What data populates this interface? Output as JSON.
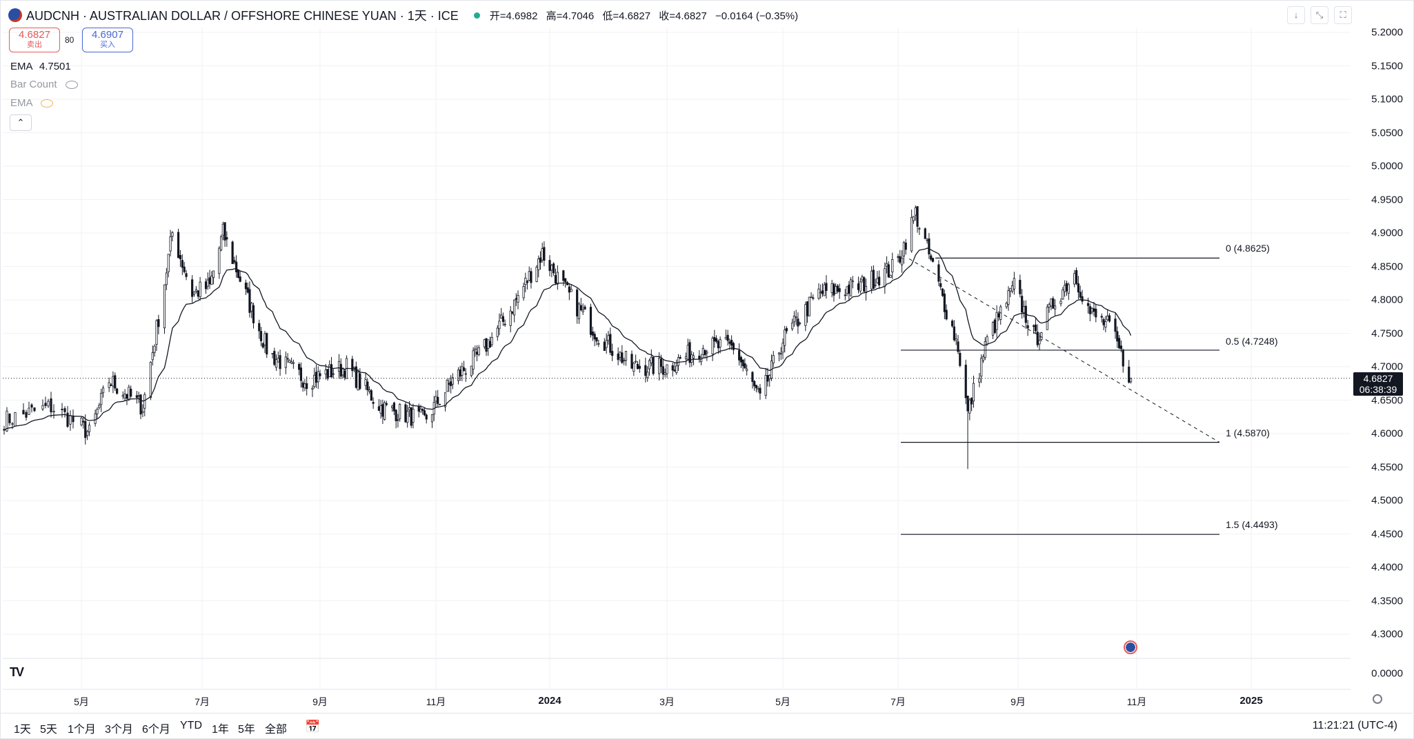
{
  "header": {
    "symbol": "AUDCNH · AUSTRALIAN DOLLAR / OFFSHORE CHINESE YUAN · 1天 · ICE",
    "open": "开=4.6982",
    "high": "高=4.7046",
    "low": "低=4.6827",
    "close": "收=4.6827",
    "change": "−0.0164 (−0.35%)"
  },
  "trade": {
    "sell_price": "4.6827",
    "sell_label": "卖出",
    "spread": "80",
    "buy_price": "4.6907",
    "buy_label": "买入"
  },
  "indicators": {
    "ema_label": "EMA",
    "ema_value": "4.7501",
    "bar_count_label": "Bar Count",
    "ema2_label": "EMA"
  },
  "price_tag": {
    "price": "4.6827",
    "countdown": "06:38:39"
  },
  "y_axis": {
    "ticks": [
      "5.2000",
      "5.1500",
      "5.1000",
      "5.0500",
      "5.0000",
      "4.9500",
      "4.9000",
      "4.8500",
      "4.8000",
      "4.7500",
      "4.7000",
      "4.6500",
      "4.6000",
      "4.5500",
      "4.5000",
      "4.4500",
      "4.4000",
      "4.3500",
      "4.3000"
    ],
    "sub_tick": "0.0000"
  },
  "x_axis": {
    "labels": [
      "5月",
      "7月",
      "9月",
      "11月",
      "2024",
      "3月",
      "5月",
      "7月",
      "9月",
      "11月",
      "2025"
    ]
  },
  "fib": {
    "level_0": "0 (4.8625)",
    "level_05": "0.5 (4.7248)",
    "level_1": "1 (4.5870)",
    "level_15": "1.5 (4.4493)"
  },
  "bottom": {
    "ranges": [
      "1天",
      "5天",
      "1个月",
      "3个月",
      "6个月",
      "YTD",
      "1年",
      "5年",
      "全部"
    ],
    "clock": "11:21:21 (UTC-4)"
  },
  "colors": {
    "candle": "#131722",
    "sell": "#e35a5a",
    "buy": "#4a67d6",
    "status_dot": "#22ab94"
  },
  "chart_data": {
    "type": "candlestick",
    "title": "AUDCNH · AUSTRALIAN DOLLAR / OFFSHORE CHINESE YUAN · 1天 · ICE",
    "ylim": [
      4.3,
      5.2
    ],
    "x_start": "2023-04-03",
    "x_end": "2024-10-29",
    "anchors": [
      [
        "2023-04-03",
        4.62
      ],
      [
        "2023-04-20",
        4.64
      ],
      [
        "2023-05-05",
        4.6
      ],
      [
        "2023-05-15",
        4.68
      ],
      [
        "2023-06-01",
        4.64
      ],
      [
        "2023-06-10",
        4.79
      ],
      [
        "2023-06-16",
        4.9
      ],
      [
        "2023-06-26",
        4.81
      ],
      [
        "2023-07-05",
        4.82
      ],
      [
        "2023-07-12",
        4.9
      ],
      [
        "2023-07-25",
        4.8
      ],
      [
        "2023-08-05",
        4.72
      ],
      [
        "2023-08-25",
        4.68
      ],
      [
        "2023-09-15",
        4.7
      ],
      [
        "2023-10-03",
        4.64
      ],
      [
        "2023-10-26",
        4.62
      ],
      [
        "2023-11-10",
        4.68
      ],
      [
        "2023-11-25",
        4.72
      ],
      [
        "2023-12-10",
        4.78
      ],
      [
        "2023-12-28",
        4.87
      ],
      [
        "2024-01-10",
        4.81
      ],
      [
        "2024-01-25",
        4.75
      ],
      [
        "2024-02-12",
        4.7
      ],
      [
        "2024-03-01",
        4.7
      ],
      [
        "2024-03-20",
        4.73
      ],
      [
        "2024-04-05",
        4.73
      ],
      [
        "2024-04-19",
        4.65
      ],
      [
        "2024-05-01",
        4.74
      ],
      [
        "2024-05-20",
        4.81
      ],
      [
        "2024-06-10",
        4.82
      ],
      [
        "2024-06-30",
        4.85
      ],
      [
        "2024-07-10",
        4.93
      ],
      [
        "2024-07-20",
        4.84
      ],
      [
        "2024-08-01",
        4.73
      ],
      [
        "2024-08-06",
        4.63
      ],
      [
        "2024-08-16",
        4.74
      ],
      [
        "2024-08-30",
        4.82
      ],
      [
        "2024-09-10",
        4.74
      ],
      [
        "2024-09-20",
        4.8
      ],
      [
        "2024-09-30",
        4.84
      ],
      [
        "2024-10-08",
        4.78
      ],
      [
        "2024-10-18",
        4.76
      ],
      [
        "2024-10-29",
        4.6827
      ]
    ],
    "ema_last": 4.7501,
    "fib_levels": [
      {
        "ratio": 0,
        "price": 4.8625
      },
      {
        "ratio": 0.5,
        "price": 4.7248
      },
      {
        "ratio": 1,
        "price": 4.587
      },
      {
        "ratio": 1.5,
        "price": 4.4493
      }
    ],
    "last_price": 4.6827
  }
}
